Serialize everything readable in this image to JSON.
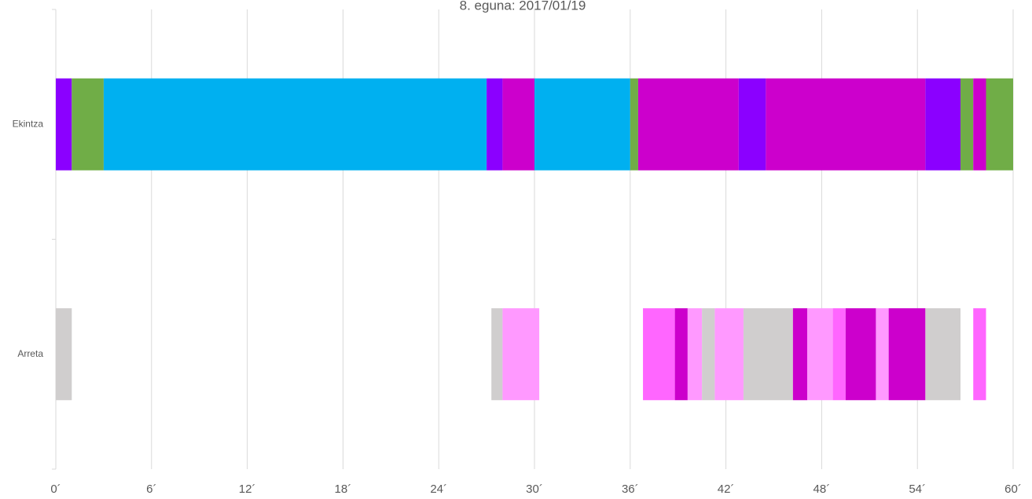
{
  "chart_data": {
    "type": "gantt",
    "title": "8. eguna: 2017/01/19",
    "categories": [
      "Ekintza",
      "Arreta"
    ],
    "rows": [
      {
        "segments": [
          {
            "start": 0,
            "end": 1.0,
            "color": "#8b00ff"
          },
          {
            "start": 1.0,
            "end": 3.0,
            "color": "#70ad47"
          },
          {
            "start": 3.0,
            "end": 27.0,
            "color": "#00b0f0"
          },
          {
            "start": 27.0,
            "end": 28.0,
            "color": "#8b00ff"
          },
          {
            "start": 28.0,
            "end": 30.0,
            "color": "#cc00cc"
          },
          {
            "start": 30.0,
            "end": 36.0,
            "color": "#00b0f0"
          },
          {
            "start": 36.0,
            "end": 36.5,
            "color": "#70ad47"
          },
          {
            "start": 36.5,
            "end": 42.8,
            "color": "#cc00cc"
          },
          {
            "start": 42.8,
            "end": 44.5,
            "color": "#8b00ff"
          },
          {
            "start": 44.5,
            "end": 54.5,
            "color": "#cc00cc"
          },
          {
            "start": 54.5,
            "end": 56.7,
            "color": "#8b00ff"
          },
          {
            "start": 56.7,
            "end": 57.5,
            "color": "#70ad47"
          },
          {
            "start": 57.5,
            "end": 58.3,
            "color": "#cc00cc"
          },
          {
            "start": 58.3,
            "end": 60,
            "color": "#70ad47"
          }
        ]
      },
      {
        "segments": [
          {
            "start": 0,
            "end": 1.0,
            "color": "#d0cece"
          },
          {
            "start": 27.3,
            "end": 28.0,
            "color": "#d0cece"
          },
          {
            "start": 28.0,
            "end": 30.3,
            "color": "#ff99ff"
          },
          {
            "start": 36.8,
            "end": 38.8,
            "color": "#ff66ff"
          },
          {
            "start": 38.8,
            "end": 39.6,
            "color": "#cc00cc"
          },
          {
            "start": 39.6,
            "end": 40.5,
            "color": "#ff99ff"
          },
          {
            "start": 40.5,
            "end": 41.3,
            "color": "#d0cece"
          },
          {
            "start": 41.3,
            "end": 43.1,
            "color": "#ff99ff"
          },
          {
            "start": 43.1,
            "end": 46.2,
            "color": "#d0cece"
          },
          {
            "start": 46.2,
            "end": 47.1,
            "color": "#cc00cc"
          },
          {
            "start": 47.1,
            "end": 48.7,
            "color": "#ff99ff"
          },
          {
            "start": 48.7,
            "end": 49.5,
            "color": "#ff66ff"
          },
          {
            "start": 49.5,
            "end": 51.4,
            "color": "#cc00cc"
          },
          {
            "start": 51.4,
            "end": 52.2,
            "color": "#ff99ff"
          },
          {
            "start": 52.2,
            "end": 54.5,
            "color": "#cc00cc"
          },
          {
            "start": 54.5,
            "end": 56.7,
            "color": "#d0cece"
          },
          {
            "start": 57.5,
            "end": 58.3,
            "color": "#ff66ff"
          }
        ]
      }
    ],
    "xlim": [
      0,
      60
    ],
    "xticks": [
      {
        "value": 0,
        "label": "0´"
      },
      {
        "value": 6,
        "label": "6´"
      },
      {
        "value": 12,
        "label": "12´"
      },
      {
        "value": 18,
        "label": "18´"
      },
      {
        "value": 24,
        "label": "24´"
      },
      {
        "value": 30,
        "label": "30´"
      },
      {
        "value": 36,
        "label": "36´"
      },
      {
        "value": 42,
        "label": "42´"
      },
      {
        "value": 48,
        "label": "48´"
      },
      {
        "value": 54,
        "label": "54´"
      },
      {
        "value": 60,
        "label": "60´"
      }
    ],
    "grid": true
  }
}
